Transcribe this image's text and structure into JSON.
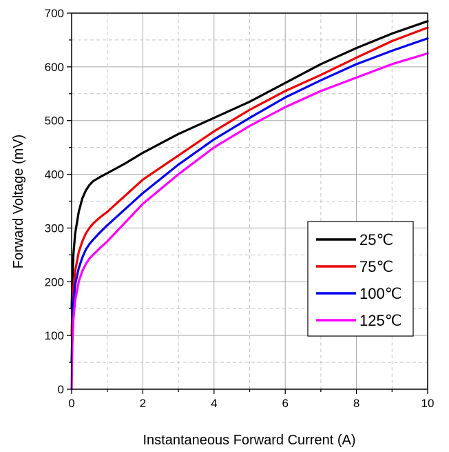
{
  "chart_data": {
    "type": "line",
    "title": "",
    "xlabel": "Instantaneous Forward Current (A)",
    "ylabel": "Forward Voltage (mV)",
    "xlim": [
      0,
      10
    ],
    "ylim": [
      0,
      700
    ],
    "xticks": [
      0,
      2,
      4,
      6,
      8,
      10
    ],
    "yticks": [
      0,
      100,
      200,
      300,
      400,
      500,
      600,
      700
    ],
    "grid": true,
    "legend_position": "bottom-right",
    "series": [
      {
        "name": "25℃",
        "color": "#000000",
        "x": [
          0,
          0.02,
          0.05,
          0.1,
          0.2,
          0.3,
          0.4,
          0.5,
          0.6,
          0.8,
          1,
          1.5,
          2,
          3,
          4,
          5,
          6,
          7,
          8,
          9,
          10
        ],
        "y": [
          150,
          200,
          250,
          290,
          330,
          355,
          370,
          380,
          387,
          395,
          402,
          420,
          440,
          475,
          505,
          535,
          570,
          605,
          635,
          662,
          685
        ]
      },
      {
        "name": "75℃",
        "color": "#ee0000",
        "x": [
          0,
          0.02,
          0.05,
          0.1,
          0.2,
          0.3,
          0.4,
          0.5,
          0.6,
          0.8,
          1,
          1.5,
          2,
          3,
          4,
          5,
          6,
          7,
          8,
          9,
          10
        ],
        "y": [
          100,
          150,
          190,
          220,
          255,
          275,
          290,
          300,
          308,
          320,
          330,
          360,
          390,
          435,
          480,
          520,
          555,
          585,
          617,
          648,
          673
        ]
      },
      {
        "name": "100℃",
        "color": "#0000ee",
        "x": [
          0,
          0.02,
          0.05,
          0.1,
          0.2,
          0.3,
          0.4,
          0.5,
          0.6,
          0.8,
          1,
          1.5,
          2,
          3,
          4,
          5,
          6,
          7,
          8,
          9,
          10
        ],
        "y": [
          50,
          110,
          160,
          195,
          225,
          245,
          260,
          270,
          278,
          292,
          305,
          335,
          365,
          418,
          465,
          505,
          543,
          575,
          605,
          630,
          653
        ]
      },
      {
        "name": "125℃",
        "color": "#ff00ff",
        "x": [
          0,
          0.02,
          0.05,
          0.1,
          0.2,
          0.3,
          0.4,
          0.5,
          0.6,
          0.8,
          1,
          1.5,
          2,
          3,
          4,
          5,
          6,
          7,
          8,
          9,
          10
        ],
        "y": [
          0,
          80,
          130,
          165,
          200,
          220,
          233,
          243,
          250,
          263,
          275,
          310,
          345,
          400,
          450,
          490,
          525,
          555,
          580,
          605,
          625
        ]
      }
    ]
  }
}
